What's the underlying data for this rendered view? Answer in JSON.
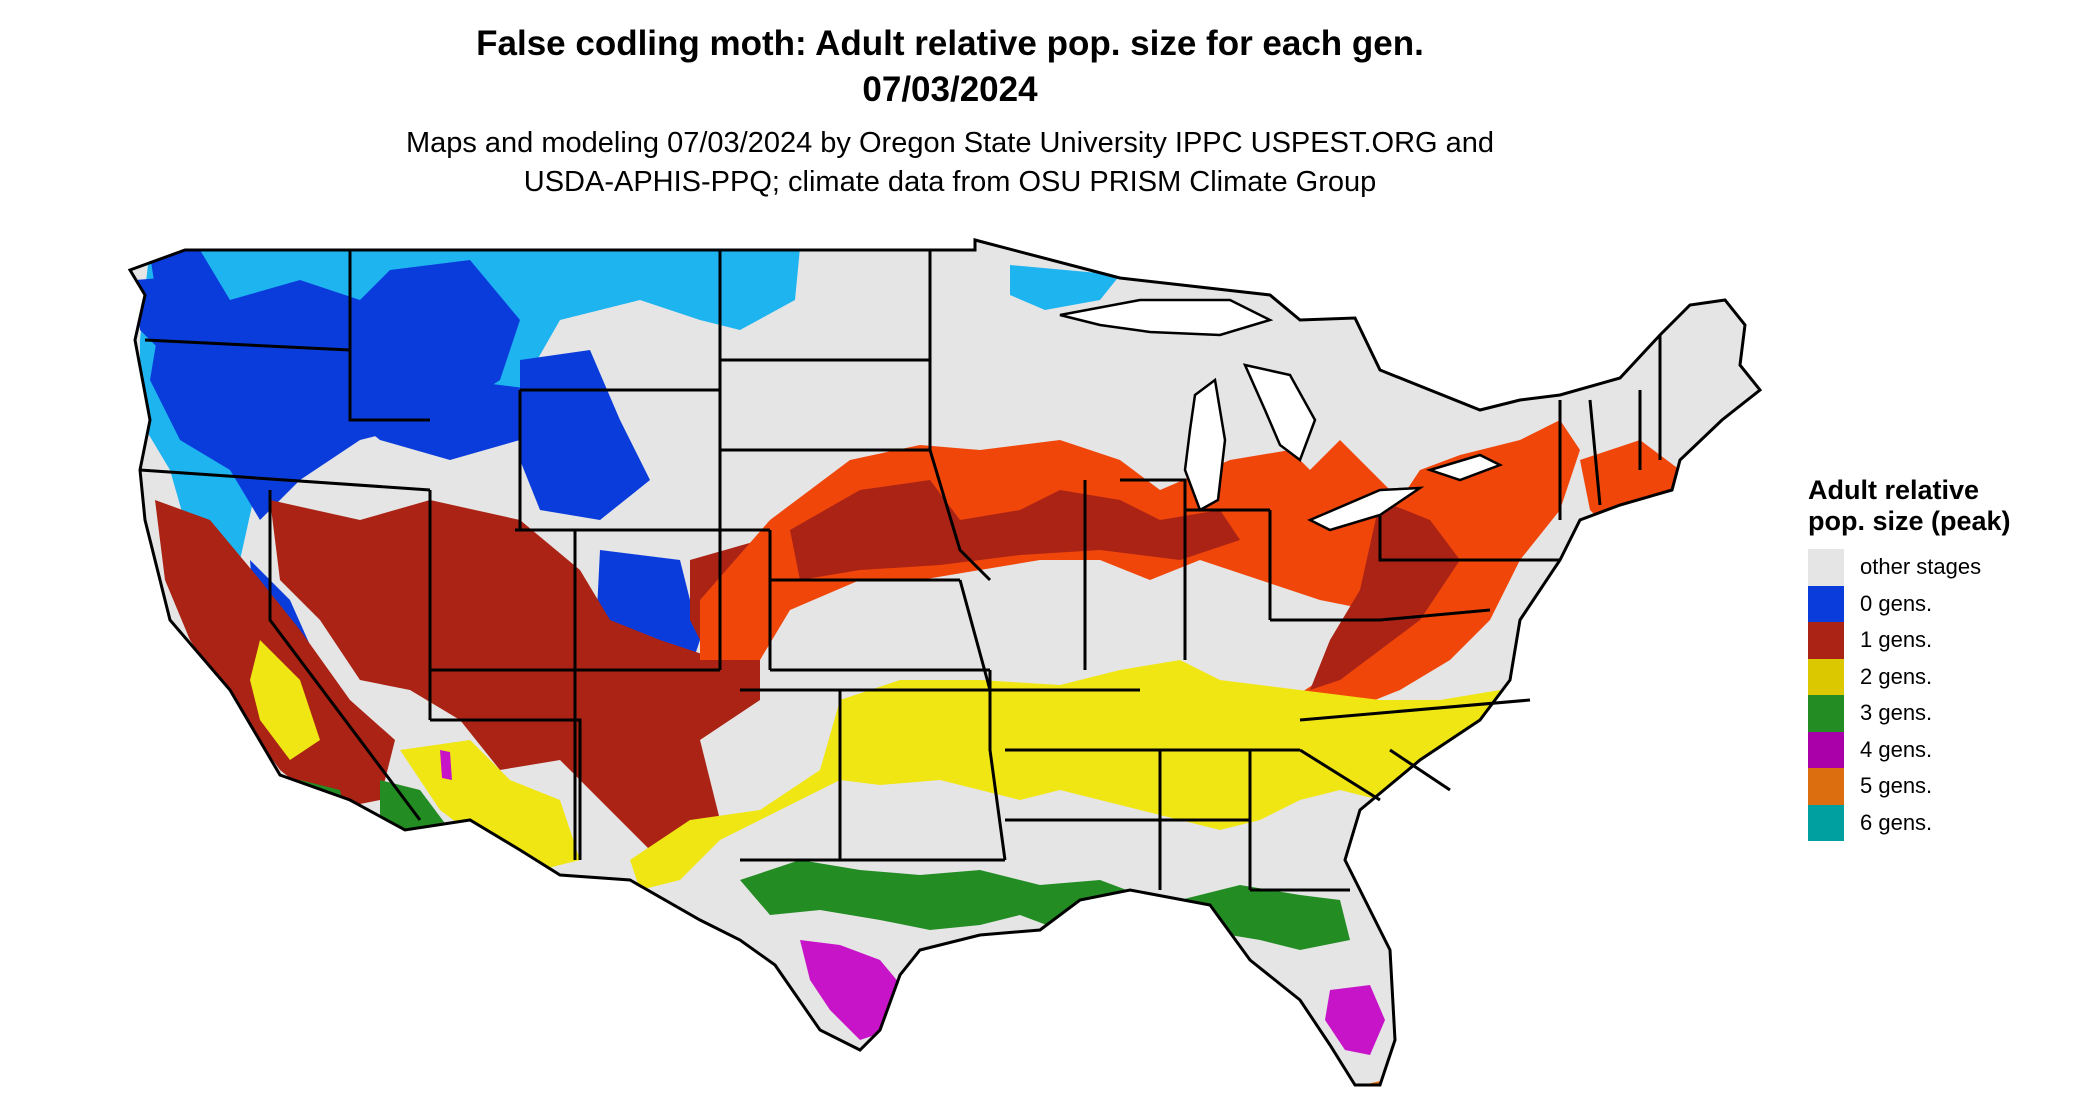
{
  "title_line1": "False codling moth: Adult relative pop. size for each gen.",
  "title_line2": "07/03/2024",
  "subtitle_line1": "Maps and modeling 07/03/2024 by Oregon State University IPPC USPEST.ORG and",
  "subtitle_line2": "USDA-APHIS-PPQ; climate data from OSU PRISM Climate Group",
  "legend": {
    "title": "Adult relative pop. size (peak)",
    "items": [
      {
        "label": "other stages",
        "color": "#e5e5e5"
      },
      {
        "label": "0 gens.",
        "color": "#0a3cdc"
      },
      {
        "label": "1 gens.",
        "color": "#aa2314"
      },
      {
        "label": "2 gens.",
        "color": "#dcc800"
      },
      {
        "label": "3 gens.",
        "color": "#238c23"
      },
      {
        "label": "4 gens.",
        "color": "#aa00aa"
      },
      {
        "label": "5 gens.",
        "color": "#dc6e0f"
      },
      {
        "label": "6 gens.",
        "color": "#00a0a0"
      }
    ]
  },
  "map_colors": {
    "background_states": "#e5e5e5",
    "gen0_light": "#1eb4f0",
    "gen0_dark": "#0a3cdc",
    "gen1_bright": "#f0460a",
    "gen1_dark": "#aa2314",
    "gen2_bright": "#f0e614",
    "gen3": "#238c23",
    "gen4": "#c814c8",
    "gen5": "#dc6e0f",
    "outline": "#000000"
  }
}
